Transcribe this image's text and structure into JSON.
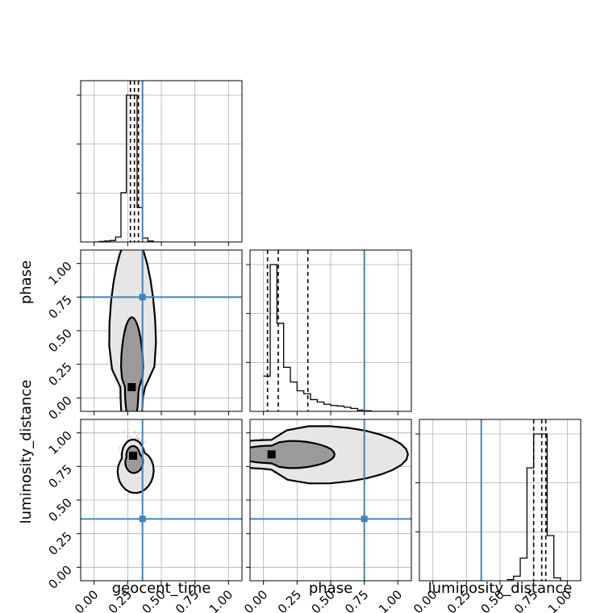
{
  "chart_data": {
    "type": "corner",
    "parameters": [
      "geocent_time",
      "phase",
      "luminosity_distance"
    ],
    "axis_range": [
      -0.1,
      1.1
    ],
    "ticks": [
      0.0,
      0.25,
      0.5,
      0.75,
      1.0
    ],
    "tick_labels": [
      "0.00",
      "0.25",
      "0.50",
      "0.75",
      "1.00"
    ],
    "grid": true,
    "colors": {
      "truth": "#4682b4",
      "hist": "#000000",
      "points": "#000000"
    },
    "truths": {
      "geocent_time": 0.36,
      "phase": 0.75,
      "luminosity_distance": 0.36
    },
    "histograms": {
      "geocent_time": {
        "bin_edges": [
          0.0,
          0.04,
          0.08,
          0.12,
          0.16,
          0.2,
          0.24,
          0.28,
          0.32,
          0.36,
          0.4,
          0.44,
          0.48,
          0.52
        ],
        "counts": [
          0,
          1,
          2,
          3,
          10,
          100,
          298,
          298,
          70,
          8,
          2,
          0,
          0
        ],
        "quantiles": [
          0.27,
          0.3,
          0.33
        ]
      },
      "phase": {
        "bin_edges": [
          0.0,
          0.05,
          0.1,
          0.15,
          0.2,
          0.25,
          0.3,
          0.35,
          0.4,
          0.45,
          0.5,
          0.55,
          0.6,
          0.65,
          0.7,
          0.75,
          0.8,
          0.85,
          0.9,
          0.95,
          1.0
        ],
        "counts": [
          60,
          250,
          150,
          75,
          50,
          35,
          30,
          20,
          16,
          12,
          10,
          9,
          7,
          5,
          2,
          1,
          0,
          0,
          0,
          0
        ],
        "quantiles": [
          0.03,
          0.11,
          0.33
        ]
      },
      "luminosity_distance": {
        "bin_edges": [
          0.55,
          0.6,
          0.65,
          0.7,
          0.75,
          0.8,
          0.85,
          0.9,
          0.95,
          1.0
        ],
        "counts": [
          2,
          8,
          40,
          200,
          260,
          260,
          80,
          5,
          0
        ],
        "quantiles": [
          0.75,
          0.81,
          0.84
        ]
      }
    },
    "joint": [
      {
        "x": "geocent_time",
        "y": "phase",
        "mode": [
          0.28,
          0.08
        ],
        "spread": [
          0.035,
          0.2
        ],
        "tail": [
          0.36,
          0.7
        ]
      },
      {
        "x": "geocent_time",
        "y": "luminosity_distance",
        "mode": [
          0.29,
          0.83
        ],
        "spread": [
          0.035,
          0.05
        ],
        "tail": [
          0.32,
          0.72
        ]
      },
      {
        "x": "phase",
        "y": "luminosity_distance",
        "mode": [
          0.06,
          0.84
        ],
        "spread": [
          0.18,
          0.045
        ],
        "tail": [
          0.55,
          0.82
        ]
      }
    ]
  }
}
